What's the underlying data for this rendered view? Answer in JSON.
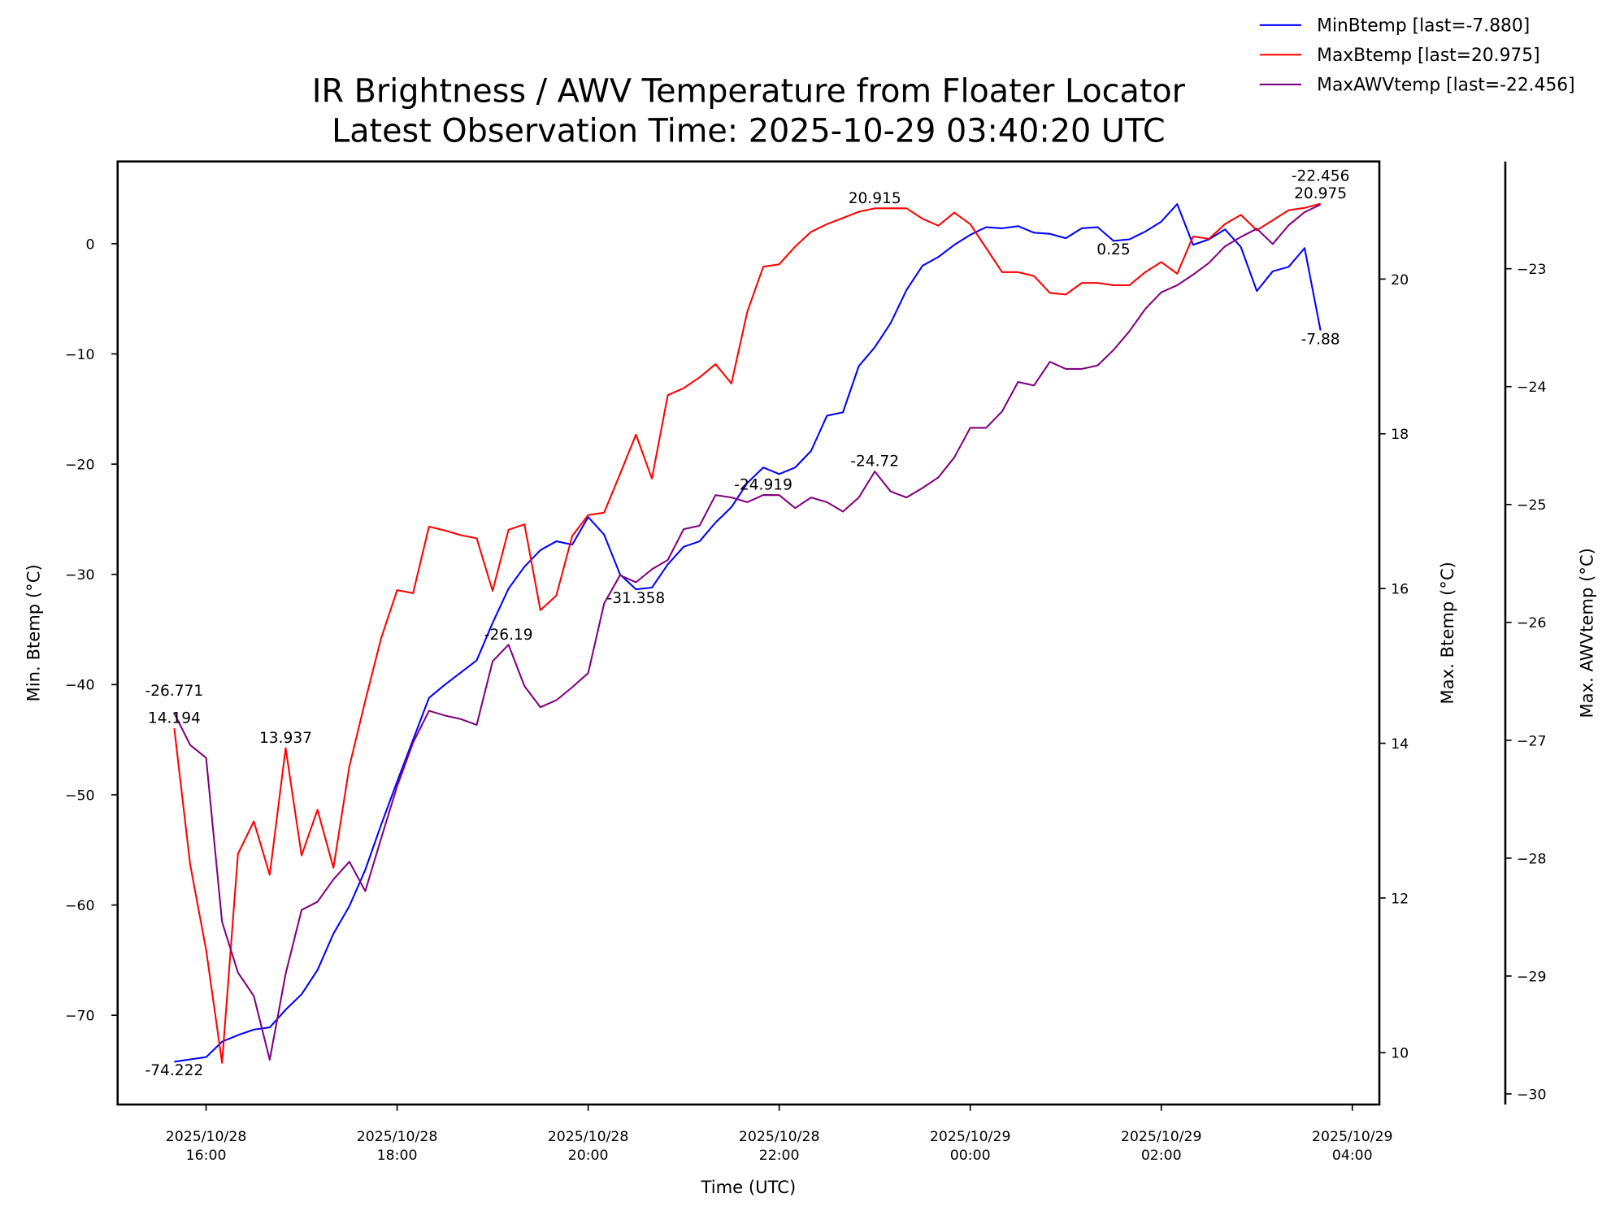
{
  "chart_data": {
    "type": "line",
    "title": [
      "IR Brightness / AWV Temperature from Floater Locator",
      "Latest Observation Time: 2025-10-29 03:40:20 UTC"
    ],
    "xlabel": "Time (UTC)",
    "x_units": "hours since 2025-10-28 00:00 UTC",
    "x_start": 15.6667,
    "x_step_minutes": 10,
    "xlim": [
      15.074,
      28.283
    ],
    "xticks": [
      {
        "value": 16,
        "label": [
          "2025/10/28",
          "16:00"
        ]
      },
      {
        "value": 18,
        "label": [
          "2025/10/28",
          "18:00"
        ]
      },
      {
        "value": 20,
        "label": [
          "2025/10/28",
          "20:00"
        ]
      },
      {
        "value": 22,
        "label": [
          "2025/10/28",
          "22:00"
        ]
      },
      {
        "value": 24,
        "label": [
          "2025/10/29",
          "00:00"
        ]
      },
      {
        "value": 26,
        "label": [
          "2025/10/29",
          "02:00"
        ]
      },
      {
        "value": 28,
        "label": [
          "2025/10/29",
          "04:00"
        ]
      }
    ],
    "axes": [
      {
        "id": "left",
        "label": "Min. Btemp (°C)",
        "ylim": [
          -78.1,
          7.46
        ],
        "ticks": [
          {
            "v": 0,
            "t": "0"
          },
          {
            "v": -10,
            "t": "−10"
          },
          {
            "v": -20,
            "t": "−20"
          },
          {
            "v": -30,
            "t": "−30"
          },
          {
            "v": -40,
            "t": "−40"
          },
          {
            "v": -50,
            "t": "−50"
          },
          {
            "v": -60,
            "t": "−60"
          },
          {
            "v": -70,
            "t": "−70"
          }
        ]
      },
      {
        "id": "mid",
        "label": "Max. Btemp (°C)",
        "ylim": [
          9.33,
          21.52
        ],
        "ticks": [
          {
            "v": 10,
            "t": "10"
          },
          {
            "v": 12,
            "t": "12"
          },
          {
            "v": 14,
            "t": "14"
          },
          {
            "v": 16,
            "t": "16"
          },
          {
            "v": 18,
            "t": "18"
          },
          {
            "v": 20,
            "t": "20"
          }
        ]
      },
      {
        "id": "right",
        "label": "Max. AWVtemp (°C)",
        "ylim": [
          -30.09,
          -22.09
        ],
        "ticks": [
          {
            "v": -23,
            "t": "−23"
          },
          {
            "v": -24,
            "t": "−24"
          },
          {
            "v": -25,
            "t": "−25"
          },
          {
            "v": -26,
            "t": "−26"
          },
          {
            "v": -27,
            "t": "−27"
          },
          {
            "v": -28,
            "t": "−28"
          },
          {
            "v": -29,
            "t": "−29"
          },
          {
            "v": -30,
            "t": "−30"
          }
        ]
      }
    ],
    "series": [
      {
        "name": "MinBtemp",
        "legend": "MinBtemp [last=-7.880]",
        "axis": "left",
        "color": "#0000ff",
        "values": [
          -74.22,
          -74.0,
          -73.8,
          -72.4,
          -71.8,
          -71.3,
          -71.1,
          -69.5,
          -68.1,
          -65.9,
          -62.6,
          -60.1,
          -56.8,
          -52.7,
          -48.8,
          -45.0,
          -41.2,
          -40.0,
          -38.9,
          -37.8,
          -34.4,
          -31.3,
          -29.3,
          -27.8,
          -27.0,
          -27.3,
          -24.8,
          -26.4,
          -30.0,
          -31.358,
          -31.2,
          -29.1,
          -27.5,
          -27.0,
          -25.3,
          -23.9,
          -21.7,
          -20.3,
          -20.9,
          -20.3,
          -18.8,
          -15.6,
          -15.3,
          -11.1,
          -9.4,
          -7.2,
          -4.2,
          -2.0,
          -1.2,
          -0.1,
          0.8,
          1.5,
          1.4,
          1.6,
          1.0,
          0.9,
          0.5,
          1.4,
          1.5,
          0.25,
          0.4,
          1.1,
          2.0,
          3.6,
          -0.1,
          0.4,
          1.3,
          -0.3,
          -4.3,
          -2.5,
          -2.1,
          -0.4,
          -7.88
        ]
      },
      {
        "name": "MaxBtemp",
        "legend": "MaxBtemp [last=20.975]",
        "axis": "mid",
        "color": "#ff0000",
        "values": [
          14.194,
          12.43,
          11.33,
          9.87,
          12.57,
          12.99,
          12.3,
          13.937,
          12.55,
          13.14,
          12.39,
          13.7,
          14.55,
          15.36,
          15.98,
          15.94,
          16.8,
          16.75,
          16.69,
          16.65,
          15.97,
          16.76,
          16.83,
          15.72,
          15.91,
          16.68,
          16.95,
          16.98,
          17.48,
          17.99,
          17.42,
          18.5,
          18.59,
          18.73,
          18.9,
          18.65,
          19.58,
          20.16,
          20.19,
          20.42,
          20.61,
          20.71,
          20.79,
          20.87,
          20.915,
          20.915,
          20.915,
          20.78,
          20.69,
          20.86,
          20.71,
          20.4,
          20.09,
          20.09,
          20.04,
          19.82,
          19.8,
          19.95,
          19.95,
          19.92,
          19.92,
          20.09,
          20.22,
          20.07,
          20.55,
          20.52,
          20.71,
          20.83,
          20.63,
          20.76,
          20.89,
          20.92,
          20.975
        ]
      },
      {
        "name": "MaxAWVtemp",
        "legend": "MaxAWVtemp [last=-22.456]",
        "axis": "right",
        "color": "#800080",
        "values": [
          -26.771,
          -27.04,
          -27.15,
          -28.54,
          -28.97,
          -29.17,
          -29.71,
          -28.98,
          -28.44,
          -28.37,
          -28.18,
          -28.03,
          -28.28,
          -27.83,
          -27.39,
          -27.02,
          -26.75,
          -26.79,
          -26.82,
          -26.87,
          -26.33,
          -26.19,
          -26.54,
          -26.72,
          -26.66,
          -26.55,
          -26.43,
          -25.84,
          -25.6,
          -25.66,
          -25.55,
          -25.47,
          -25.21,
          -25.18,
          -24.92,
          -24.94,
          -24.98,
          -24.919,
          -24.92,
          -25.03,
          -24.94,
          -24.98,
          -25.06,
          -24.94,
          -24.72,
          -24.89,
          -24.94,
          -24.86,
          -24.77,
          -24.6,
          -24.35,
          -24.35,
          -24.21,
          -23.96,
          -23.99,
          -23.79,
          -23.85,
          -23.85,
          -23.82,
          -23.69,
          -23.53,
          -23.34,
          -23.2,
          -23.14,
          -23.05,
          -22.95,
          -22.81,
          -22.73,
          -22.66,
          -22.79,
          -22.63,
          -22.52,
          -22.456
        ]
      }
    ],
    "annotations": [
      {
        "series": 0,
        "index": 0,
        "text": "-74.222",
        "position": "below"
      },
      {
        "series": 0,
        "index": 29,
        "text": "-31.358",
        "position": "below"
      },
      {
        "series": 0,
        "index": 59,
        "text": "0.25",
        "position": "below"
      },
      {
        "series": 0,
        "index": 72,
        "text": "-7.88",
        "position": "below"
      },
      {
        "series": 1,
        "index": 0,
        "text": "14.194",
        "position": "above"
      },
      {
        "series": 1,
        "index": 7,
        "text": "13.937",
        "position": "above"
      },
      {
        "series": 1,
        "index": 44,
        "text": "20.915",
        "position": "above"
      },
      {
        "series": 1,
        "index": 72,
        "text": "20.975",
        "position": "above"
      },
      {
        "series": 2,
        "index": 0,
        "text": "-26.771",
        "position": "above"
      },
      {
        "series": 2,
        "index": 21,
        "text": "-26.19",
        "position": "above"
      },
      {
        "series": 2,
        "index": 37,
        "text": "-24.919",
        "position": "above"
      },
      {
        "series": 2,
        "index": 44,
        "text": "-24.72",
        "position": "above"
      },
      {
        "series": 2,
        "index": 72,
        "text": "-22.456",
        "position": "above"
      }
    ],
    "legend_position": "top-right, outside plot",
    "grid": false
  }
}
